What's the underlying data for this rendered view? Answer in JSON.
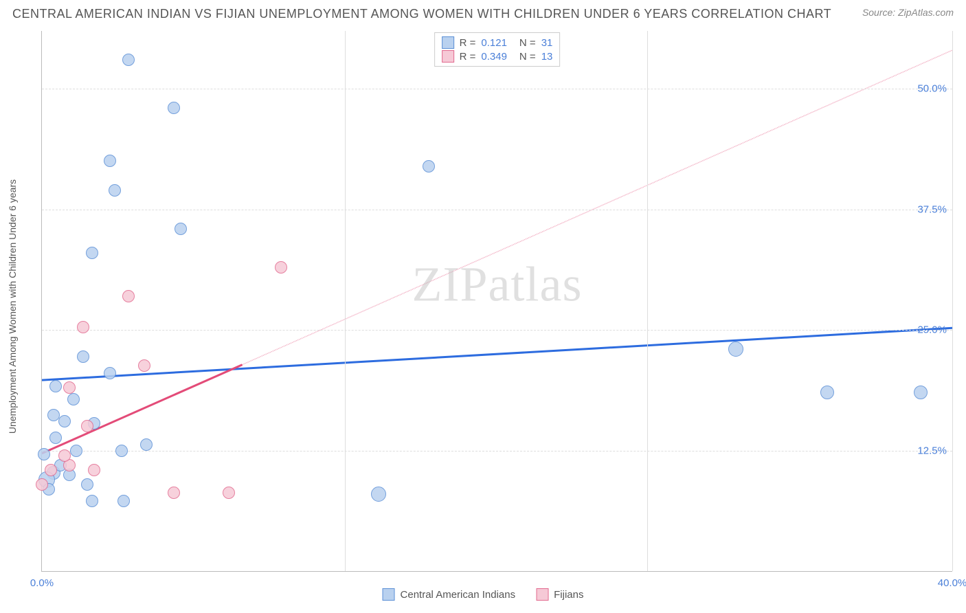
{
  "title": "CENTRAL AMERICAN INDIAN VS FIJIAN UNEMPLOYMENT AMONG WOMEN WITH CHILDREN UNDER 6 YEARS CORRELATION CHART",
  "source": "Source: ZipAtlas.com",
  "watermark": "ZIPatlas",
  "ylabel": "Unemployment Among Women with Children Under 6 years",
  "chart": {
    "type": "scatter",
    "background_color": "#ffffff",
    "grid_color": "#dddddd",
    "axis_color": "#bbbbbb",
    "tick_label_color": "#4a7fd8",
    "tick_fontsize": 15,
    "label_fontsize": 14,
    "xlim": [
      0,
      40
    ],
    "ylim": [
      0,
      56
    ],
    "xticks": [
      {
        "value": 0,
        "label": "0.0%"
      },
      {
        "value": 40,
        "label": "40.0%"
      }
    ],
    "xgrids": [
      13.3,
      26.6,
      40
    ],
    "yticks": [
      {
        "value": 12.5,
        "label": "12.5%"
      },
      {
        "value": 25.0,
        "label": "25.0%"
      },
      {
        "value": 37.5,
        "label": "37.5%"
      },
      {
        "value": 50.0,
        "label": "50.0%"
      }
    ],
    "series": [
      {
        "name": "Central American Indians",
        "color_fill": "#b9d1ef",
        "color_stroke": "#5b8fd6",
        "marker_radius": 9,
        "trend": {
          "x1": 0,
          "y1": 19.8,
          "x2": 40,
          "y2": 25.2,
          "color": "#2d6cdf",
          "width": 3,
          "dash_from_x": null
        },
        "r": "0.121",
        "n": "31",
        "points": [
          {
            "x": 3.8,
            "y": 53.0,
            "r": 9
          },
          {
            "x": 5.8,
            "y": 48.0,
            "r": 9
          },
          {
            "x": 3.0,
            "y": 42.5,
            "r": 9
          },
          {
            "x": 17.0,
            "y": 42.0,
            "r": 9
          },
          {
            "x": 3.2,
            "y": 39.5,
            "r": 9
          },
          {
            "x": 6.1,
            "y": 35.5,
            "r": 9
          },
          {
            "x": 2.2,
            "y": 33.0,
            "r": 9
          },
          {
            "x": 30.5,
            "y": 23.0,
            "r": 11
          },
          {
            "x": 34.5,
            "y": 18.5,
            "r": 10
          },
          {
            "x": 38.6,
            "y": 18.5,
            "r": 10
          },
          {
            "x": 1.8,
            "y": 22.2,
            "r": 9
          },
          {
            "x": 3.0,
            "y": 20.5,
            "r": 9
          },
          {
            "x": 0.6,
            "y": 19.2,
            "r": 9
          },
          {
            "x": 1.4,
            "y": 17.8,
            "r": 9
          },
          {
            "x": 0.5,
            "y": 16.2,
            "r": 9
          },
          {
            "x": 1.0,
            "y": 15.5,
            "r": 9
          },
          {
            "x": 2.3,
            "y": 15.3,
            "r": 9
          },
          {
            "x": 0.5,
            "y": 10.2,
            "r": 10
          },
          {
            "x": 0.2,
            "y": 9.5,
            "r": 12
          },
          {
            "x": 3.5,
            "y": 12.5,
            "r": 9
          },
          {
            "x": 1.5,
            "y": 12.5,
            "r": 9
          },
          {
            "x": 4.6,
            "y": 13.1,
            "r": 9
          },
          {
            "x": 2.2,
            "y": 7.3,
            "r": 9
          },
          {
            "x": 3.6,
            "y": 7.3,
            "r": 9
          },
          {
            "x": 0.1,
            "y": 12.1,
            "r": 9
          },
          {
            "x": 14.8,
            "y": 8.0,
            "r": 11
          },
          {
            "x": 0.3,
            "y": 8.5,
            "r": 9
          },
          {
            "x": 0.8,
            "y": 11.0,
            "r": 9
          },
          {
            "x": 1.2,
            "y": 10.0,
            "r": 9
          },
          {
            "x": 0.6,
            "y": 13.8,
            "r": 9
          },
          {
            "x": 2.0,
            "y": 9.0,
            "r": 9
          }
        ]
      },
      {
        "name": "Fijians",
        "color_fill": "#f6c9d6",
        "color_stroke": "#e26a8f",
        "marker_radius": 9,
        "trend": {
          "x1": 0,
          "y1": 12.2,
          "x2": 40,
          "y2": 54.0,
          "color": "#e34b78",
          "width": 3,
          "dash_from_x": 8.8
        },
        "r": "0.349",
        "n": "13",
        "points": [
          {
            "x": 3.8,
            "y": 28.5,
            "r": 9
          },
          {
            "x": 1.8,
            "y": 25.3,
            "r": 9
          },
          {
            "x": 4.5,
            "y": 21.3,
            "r": 9
          },
          {
            "x": 1.2,
            "y": 19.0,
            "r": 9
          },
          {
            "x": 2.0,
            "y": 15.0,
            "r": 9
          },
          {
            "x": 2.3,
            "y": 10.5,
            "r": 9
          },
          {
            "x": 1.2,
            "y": 11.0,
            "r": 9
          },
          {
            "x": 0.0,
            "y": 9.0,
            "r": 9
          },
          {
            "x": 5.8,
            "y": 8.1,
            "r": 9
          },
          {
            "x": 8.2,
            "y": 8.1,
            "r": 9
          },
          {
            "x": 0.4,
            "y": 10.5,
            "r": 9
          },
          {
            "x": 1.0,
            "y": 12.0,
            "r": 9
          },
          {
            "x": 10.5,
            "y": 31.5,
            "r": 9
          }
        ]
      }
    ]
  },
  "r_legend_labels": {
    "r_prefix": "R  =",
    "n_prefix": "N  ="
  },
  "bottom_legend": [
    {
      "label": "Central American Indians",
      "fill": "#b9d1ef",
      "stroke": "#5b8fd6"
    },
    {
      "label": "Fijians",
      "fill": "#f6c9d6",
      "stroke": "#e26a8f"
    }
  ]
}
